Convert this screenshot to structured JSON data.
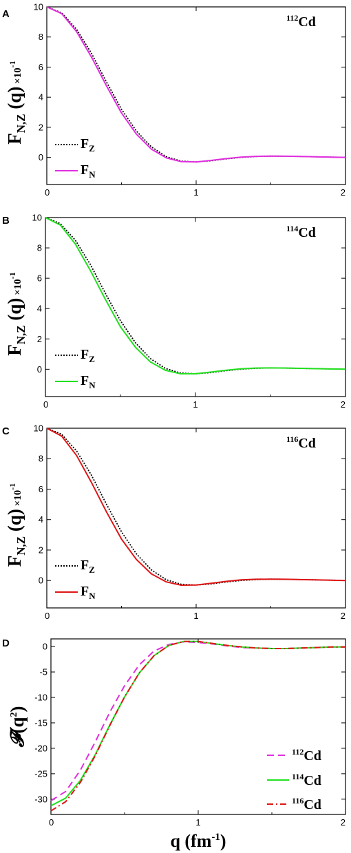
{
  "chart_data": [
    {
      "type": "line",
      "panel": "A",
      "isotope_mass": "112",
      "isotope_symbol": "Cd",
      "ylabel": {
        "main": "F",
        "sub": "N,Z",
        "rest": "(q)",
        "scale": "×10",
        "exp": "-1"
      },
      "xlim": [
        0,
        2
      ],
      "ylim": [
        -1.8,
        10
      ],
      "xticks": [
        "0",
        "1",
        "2"
      ],
      "yticks": [
        "0",
        "2",
        "4",
        "6",
        "8",
        "10"
      ],
      "series": [
        {
          "name": "F",
          "name_sub": "Z",
          "style": "dotted",
          "color": "#000000",
          "x": [
            0,
            0.1,
            0.2,
            0.3,
            0.4,
            0.5,
            0.6,
            0.7,
            0.8,
            0.9,
            1.0,
            1.1,
            1.2,
            1.3,
            1.4,
            1.5,
            1.6,
            1.7,
            1.8,
            1.9,
            2.0
          ],
          "y": [
            10,
            9.6,
            8.5,
            6.9,
            5.0,
            3.2,
            1.75,
            0.7,
            0.05,
            -0.25,
            -0.3,
            -0.22,
            -0.1,
            0.0,
            0.06,
            0.09,
            0.08,
            0.06,
            0.04,
            0.02,
            0.0
          ]
        },
        {
          "name": "F",
          "name_sub": "N",
          "style": "solid",
          "color": "#e22ee0",
          "x": [
            0,
            0.1,
            0.2,
            0.3,
            0.4,
            0.5,
            0.6,
            0.7,
            0.8,
            0.9,
            1.0,
            1.1,
            1.2,
            1.3,
            1.4,
            1.5,
            1.6,
            1.7,
            1.8,
            1.9,
            2.0
          ],
          "y": [
            10,
            9.55,
            8.35,
            6.65,
            4.75,
            2.95,
            1.55,
            0.55,
            -0.03,
            -0.28,
            -0.3,
            -0.2,
            -0.08,
            0.02,
            0.07,
            0.09,
            0.08,
            0.06,
            0.04,
            0.02,
            0.0
          ]
        }
      ]
    },
    {
      "type": "line",
      "panel": "B",
      "isotope_mass": "114",
      "isotope_symbol": "Cd",
      "ylabel": {
        "main": "F",
        "sub": "N,Z",
        "rest": "(q)",
        "scale": "×10",
        "exp": "-1"
      },
      "xlim": [
        0,
        2
      ],
      "ylim": [
        -1.8,
        10
      ],
      "xticks": [
        "0",
        "1",
        "2"
      ],
      "yticks": [
        "0",
        "2",
        "4",
        "6",
        "8",
        "10"
      ],
      "series": [
        {
          "name": "F",
          "name_sub": "Z",
          "style": "dotted",
          "color": "#000000",
          "x": [
            0,
            0.1,
            0.2,
            0.3,
            0.4,
            0.5,
            0.6,
            0.7,
            0.8,
            0.9,
            1.0,
            1.1,
            1.2,
            1.3,
            1.4,
            1.5,
            1.6,
            1.7,
            1.8,
            1.9,
            2.0
          ],
          "y": [
            10,
            9.6,
            8.5,
            6.9,
            5.0,
            3.2,
            1.75,
            0.7,
            0.05,
            -0.25,
            -0.3,
            -0.22,
            -0.1,
            0.0,
            0.06,
            0.09,
            0.08,
            0.06,
            0.04,
            0.02,
            0.0
          ]
        },
        {
          "name": "F",
          "name_sub": "N",
          "style": "solid",
          "color": "#22e01e",
          "x": [
            0,
            0.1,
            0.2,
            0.3,
            0.4,
            0.5,
            0.6,
            0.7,
            0.8,
            0.9,
            1.0,
            1.1,
            1.2,
            1.3,
            1.4,
            1.5,
            1.6,
            1.7,
            1.8,
            1.9,
            2.0
          ],
          "y": [
            10,
            9.5,
            8.25,
            6.5,
            4.6,
            2.8,
            1.45,
            0.48,
            -0.07,
            -0.3,
            -0.3,
            -0.19,
            -0.07,
            0.03,
            0.08,
            0.09,
            0.08,
            0.06,
            0.04,
            0.02,
            0.0
          ]
        }
      ]
    },
    {
      "type": "line",
      "panel": "C",
      "isotope_mass": "116",
      "isotope_symbol": "Cd",
      "ylabel": {
        "main": "F",
        "sub": "N,Z",
        "rest": "(q)",
        "scale": "×10",
        "exp": "-1"
      },
      "xlim": [
        0,
        2
      ],
      "ylim": [
        -1.8,
        10
      ],
      "xticks": [
        "0",
        "1",
        "2"
      ],
      "yticks": [
        "0",
        "2",
        "4",
        "6",
        "8",
        "10"
      ],
      "series": [
        {
          "name": "F",
          "name_sub": "Z",
          "style": "dotted",
          "color": "#000000",
          "x": [
            0,
            0.1,
            0.2,
            0.3,
            0.4,
            0.5,
            0.6,
            0.7,
            0.8,
            0.9,
            1.0,
            1.1,
            1.2,
            1.3,
            1.4,
            1.5,
            1.6,
            1.7,
            1.8,
            1.9,
            2.0
          ],
          "y": [
            10,
            9.6,
            8.5,
            6.9,
            5.0,
            3.2,
            1.75,
            0.7,
            0.05,
            -0.25,
            -0.3,
            -0.22,
            -0.1,
            0.0,
            0.06,
            0.09,
            0.08,
            0.06,
            0.04,
            0.02,
            0.0
          ]
        },
        {
          "name": "F",
          "name_sub": "N",
          "style": "solid",
          "color": "#e01515",
          "x": [
            0,
            0.1,
            0.2,
            0.3,
            0.4,
            0.5,
            0.6,
            0.7,
            0.8,
            0.9,
            1.0,
            1.1,
            1.2,
            1.3,
            1.4,
            1.5,
            1.6,
            1.7,
            1.8,
            1.9,
            2.0
          ],
          "y": [
            10,
            9.48,
            8.2,
            6.42,
            4.5,
            2.72,
            1.38,
            0.44,
            -0.09,
            -0.31,
            -0.3,
            -0.18,
            -0.06,
            0.04,
            0.08,
            0.09,
            0.08,
            0.06,
            0.04,
            0.02,
            0.0
          ]
        }
      ]
    },
    {
      "type": "line",
      "panel": "D",
      "ylabel": {
        "main": "𝓕",
        "rest_open": "(q",
        "exp": "2",
        "rest_close": ")"
      },
      "xlabel": {
        "main": "q (fm",
        "exp": "-1",
        "close": ")"
      },
      "xlim": [
        0,
        2
      ],
      "ylim": [
        -33,
        1.5
      ],
      "xticks": [
        "0",
        "1",
        "2"
      ],
      "yticks": [
        "0",
        "-5",
        "-10",
        "-15",
        "-20",
        "-25",
        "-30"
      ],
      "series": [
        {
          "name_mass": "112",
          "name_symbol": "Cd",
          "style": "dashed",
          "color": "#e22ee0",
          "x": [
            0,
            0.1,
            0.2,
            0.3,
            0.4,
            0.5,
            0.6,
            0.7,
            0.8,
            0.9,
            1.0,
            1.1,
            1.2,
            1.3,
            1.4,
            1.5,
            1.6,
            1.7,
            1.8,
            1.9,
            2.0
          ],
          "y": [
            -30.3,
            -28.5,
            -24.3,
            -18.8,
            -12.9,
            -7.7,
            -3.6,
            -0.9,
            0.4,
            0.9,
            0.8,
            0.5,
            0.1,
            -0.2,
            -0.3,
            -0.4,
            -0.4,
            -0.3,
            -0.2,
            -0.1,
            -0.1
          ]
        },
        {
          "name_mass": "114",
          "name_symbol": "Cd",
          "style": "solid",
          "color": "#22e01e",
          "x": [
            0,
            0.1,
            0.2,
            0.3,
            0.4,
            0.5,
            0.6,
            0.7,
            0.8,
            0.9,
            1.0,
            1.1,
            1.2,
            1.3,
            1.4,
            1.5,
            1.6,
            1.7,
            1.8,
            1.9,
            2.0
          ],
          "y": [
            -31.3,
            -29.8,
            -26.3,
            -21.3,
            -15.4,
            -9.9,
            -5.2,
            -1.8,
            0.2,
            1.0,
            1.0,
            0.6,
            0.2,
            -0.1,
            -0.3,
            -0.4,
            -0.4,
            -0.3,
            -0.2,
            -0.1,
            -0.1
          ]
        },
        {
          "name_mass": "116",
          "name_symbol": "Cd",
          "style": "dashdot",
          "color": "#e01515",
          "x": [
            0,
            0.1,
            0.2,
            0.3,
            0.4,
            0.5,
            0.6,
            0.7,
            0.8,
            0.9,
            1.0,
            1.1,
            1.2,
            1.3,
            1.4,
            1.5,
            1.6,
            1.7,
            1.8,
            1.9,
            2.0
          ],
          "y": [
            -32.3,
            -30.5,
            -26.7,
            -21.5,
            -15.5,
            -9.9,
            -5.2,
            -1.8,
            0.2,
            1.0,
            1.0,
            0.6,
            0.2,
            -0.1,
            -0.3,
            -0.4,
            -0.4,
            -0.3,
            -0.2,
            -0.1,
            -0.1
          ]
        }
      ]
    }
  ]
}
